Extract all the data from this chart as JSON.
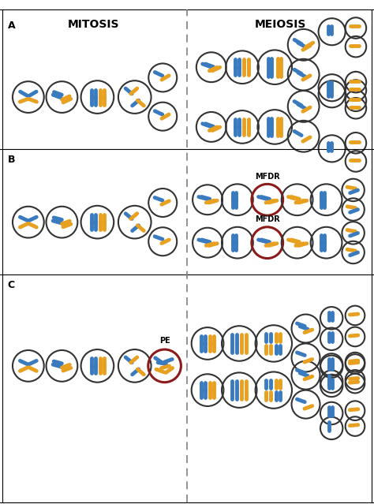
{
  "title_mitosis": "MITOSIS",
  "title_meiosis": "MEIOSIS",
  "label_A": "A",
  "label_B": "B",
  "label_C": "C",
  "label_MFDR": "MFDR",
  "label_PE": "PE",
  "blue": "#3a7abf",
  "orange": "#e8a020",
  "dark_red": "#8b1a1a",
  "circle_color": "#333333",
  "bg_color": "#ffffff",
  "figsize": [
    4.74,
    6.39
  ],
  "dpi": 100
}
